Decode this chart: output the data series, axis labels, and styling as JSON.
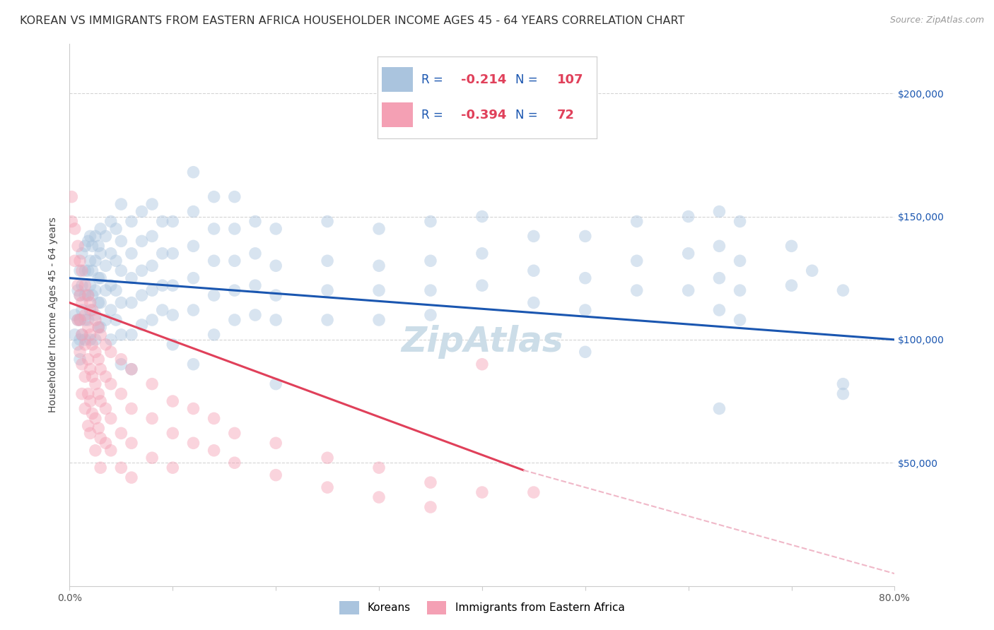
{
  "title": "KOREAN VS IMMIGRANTS FROM EASTERN AFRICA HOUSEHOLDER INCOME AGES 45 - 64 YEARS CORRELATION CHART",
  "source": "Source: ZipAtlas.com",
  "ylabel": "Householder Income Ages 45 - 64 years",
  "xlim": [
    0.0,
    0.8
  ],
  "ylim": [
    0,
    220000
  ],
  "yticks": [
    50000,
    100000,
    150000,
    200000
  ],
  "ytick_labels": [
    "$50,000",
    "$100,000",
    "$150,000",
    "$200,000"
  ],
  "xticks": [
    0.0,
    0.1,
    0.2,
    0.3,
    0.4,
    0.5,
    0.6,
    0.7,
    0.8
  ],
  "xtick_labels": [
    "0.0%",
    "",
    "",
    "",
    "",
    "",
    "",
    "",
    "80.0%"
  ],
  "korean_R": "-0.214",
  "korean_N": "107",
  "eastern_africa_R": "-0.394",
  "eastern_africa_N": "72",
  "korean_color": "#aac4de",
  "eastern_africa_color": "#f4a0b4",
  "korean_line_color": "#1a56b0",
  "eastern_africa_line_color": "#e0405a",
  "eastern_africa_dash_color": "#f0b8c8",
  "legend_label_color": "#1a56b0",
  "legend_value_color": "#e0405a",
  "watermark": "ZipAtlas",
  "watermark_color": "#ccdde8",
  "bg_color": "#ffffff",
  "grid_color": "#d4d4d4",
  "title_fontsize": 11.5,
  "axis_label_fontsize": 10,
  "tick_fontsize": 10,
  "legend_fontsize": 13,
  "watermark_fontsize": 36,
  "dot_size": 160,
  "dot_alpha": 0.45,
  "korean_trend": [
    0.0,
    125000,
    0.8,
    100000
  ],
  "eastern_africa_trend_solid": [
    0.0,
    115000,
    0.44,
    47000
  ],
  "eastern_africa_trend_dash": [
    0.44,
    47000,
    0.8,
    5000
  ],
  "korean_points": [
    [
      0.005,
      110000
    ],
    [
      0.005,
      102000
    ],
    [
      0.008,
      120000
    ],
    [
      0.008,
      108000
    ],
    [
      0.008,
      98000
    ],
    [
      0.01,
      128000
    ],
    [
      0.01,
      118000
    ],
    [
      0.01,
      108000
    ],
    [
      0.01,
      100000
    ],
    [
      0.01,
      92000
    ],
    [
      0.012,
      135000
    ],
    [
      0.012,
      122000
    ],
    [
      0.012,
      112000
    ],
    [
      0.012,
      102000
    ],
    [
      0.015,
      138000
    ],
    [
      0.015,
      128000
    ],
    [
      0.015,
      118000
    ],
    [
      0.015,
      108000
    ],
    [
      0.015,
      100000
    ],
    [
      0.018,
      140000
    ],
    [
      0.018,
      128000
    ],
    [
      0.018,
      118000
    ],
    [
      0.018,
      108000
    ],
    [
      0.02,
      142000
    ],
    [
      0.02,
      132000
    ],
    [
      0.02,
      122000
    ],
    [
      0.02,
      112000
    ],
    [
      0.02,
      100000
    ],
    [
      0.022,
      138000
    ],
    [
      0.022,
      128000
    ],
    [
      0.022,
      118000
    ],
    [
      0.025,
      142000
    ],
    [
      0.025,
      132000
    ],
    [
      0.025,
      120000
    ],
    [
      0.025,
      110000
    ],
    [
      0.025,
      100000
    ],
    [
      0.028,
      138000
    ],
    [
      0.028,
      125000
    ],
    [
      0.028,
      115000
    ],
    [
      0.028,
      105000
    ],
    [
      0.03,
      145000
    ],
    [
      0.03,
      135000
    ],
    [
      0.03,
      125000
    ],
    [
      0.03,
      115000
    ],
    [
      0.03,
      105000
    ],
    [
      0.035,
      142000
    ],
    [
      0.035,
      130000
    ],
    [
      0.035,
      120000
    ],
    [
      0.035,
      108000
    ],
    [
      0.04,
      148000
    ],
    [
      0.04,
      135000
    ],
    [
      0.04,
      122000
    ],
    [
      0.04,
      112000
    ],
    [
      0.04,
      100000
    ],
    [
      0.045,
      145000
    ],
    [
      0.045,
      132000
    ],
    [
      0.045,
      120000
    ],
    [
      0.045,
      108000
    ],
    [
      0.05,
      155000
    ],
    [
      0.05,
      140000
    ],
    [
      0.05,
      128000
    ],
    [
      0.05,
      115000
    ],
    [
      0.05,
      102000
    ],
    [
      0.05,
      90000
    ],
    [
      0.06,
      148000
    ],
    [
      0.06,
      135000
    ],
    [
      0.06,
      125000
    ],
    [
      0.06,
      115000
    ],
    [
      0.06,
      102000
    ],
    [
      0.06,
      88000
    ],
    [
      0.07,
      152000
    ],
    [
      0.07,
      140000
    ],
    [
      0.07,
      128000
    ],
    [
      0.07,
      118000
    ],
    [
      0.07,
      106000
    ],
    [
      0.08,
      155000
    ],
    [
      0.08,
      142000
    ],
    [
      0.08,
      130000
    ],
    [
      0.08,
      120000
    ],
    [
      0.08,
      108000
    ],
    [
      0.09,
      148000
    ],
    [
      0.09,
      135000
    ],
    [
      0.09,
      122000
    ],
    [
      0.09,
      112000
    ],
    [
      0.1,
      148000
    ],
    [
      0.1,
      135000
    ],
    [
      0.1,
      122000
    ],
    [
      0.1,
      110000
    ],
    [
      0.1,
      98000
    ],
    [
      0.12,
      168000
    ],
    [
      0.12,
      152000
    ],
    [
      0.12,
      138000
    ],
    [
      0.12,
      125000
    ],
    [
      0.12,
      112000
    ],
    [
      0.12,
      90000
    ],
    [
      0.14,
      158000
    ],
    [
      0.14,
      145000
    ],
    [
      0.14,
      132000
    ],
    [
      0.14,
      118000
    ],
    [
      0.14,
      102000
    ],
    [
      0.16,
      158000
    ],
    [
      0.16,
      145000
    ],
    [
      0.16,
      132000
    ],
    [
      0.16,
      120000
    ],
    [
      0.16,
      108000
    ],
    [
      0.18,
      148000
    ],
    [
      0.18,
      135000
    ],
    [
      0.18,
      122000
    ],
    [
      0.18,
      110000
    ],
    [
      0.2,
      145000
    ],
    [
      0.2,
      130000
    ],
    [
      0.2,
      118000
    ],
    [
      0.2,
      108000
    ],
    [
      0.2,
      82000
    ],
    [
      0.25,
      148000
    ],
    [
      0.25,
      132000
    ],
    [
      0.25,
      120000
    ],
    [
      0.25,
      108000
    ],
    [
      0.3,
      145000
    ],
    [
      0.3,
      130000
    ],
    [
      0.3,
      120000
    ],
    [
      0.3,
      108000
    ],
    [
      0.35,
      148000
    ],
    [
      0.35,
      132000
    ],
    [
      0.35,
      120000
    ],
    [
      0.35,
      110000
    ],
    [
      0.4,
      150000
    ],
    [
      0.4,
      135000
    ],
    [
      0.4,
      122000
    ],
    [
      0.45,
      142000
    ],
    [
      0.45,
      128000
    ],
    [
      0.45,
      115000
    ],
    [
      0.5,
      185000
    ],
    [
      0.5,
      142000
    ],
    [
      0.5,
      125000
    ],
    [
      0.5,
      112000
    ],
    [
      0.5,
      95000
    ],
    [
      0.55,
      148000
    ],
    [
      0.55,
      132000
    ],
    [
      0.55,
      120000
    ],
    [
      0.6,
      150000
    ],
    [
      0.6,
      135000
    ],
    [
      0.6,
      120000
    ],
    [
      0.63,
      152000
    ],
    [
      0.63,
      138000
    ],
    [
      0.63,
      125000
    ],
    [
      0.63,
      112000
    ],
    [
      0.63,
      72000
    ],
    [
      0.65,
      148000
    ],
    [
      0.65,
      132000
    ],
    [
      0.65,
      120000
    ],
    [
      0.65,
      108000
    ],
    [
      0.7,
      138000
    ],
    [
      0.7,
      122000
    ],
    [
      0.72,
      128000
    ],
    [
      0.75,
      120000
    ],
    [
      0.75,
      82000
    ],
    [
      0.75,
      78000
    ]
  ],
  "eastern_africa_points": [
    [
      0.002,
      158000
    ],
    [
      0.002,
      148000
    ],
    [
      0.005,
      145000
    ],
    [
      0.005,
      132000
    ],
    [
      0.008,
      138000
    ],
    [
      0.008,
      122000
    ],
    [
      0.008,
      108000
    ],
    [
      0.01,
      132000
    ],
    [
      0.01,
      118000
    ],
    [
      0.01,
      108000
    ],
    [
      0.01,
      95000
    ],
    [
      0.012,
      128000
    ],
    [
      0.012,
      115000
    ],
    [
      0.012,
      102000
    ],
    [
      0.012,
      90000
    ],
    [
      0.012,
      78000
    ],
    [
      0.015,
      122000
    ],
    [
      0.015,
      110000
    ],
    [
      0.015,
      98000
    ],
    [
      0.015,
      85000
    ],
    [
      0.015,
      72000
    ],
    [
      0.018,
      118000
    ],
    [
      0.018,
      105000
    ],
    [
      0.018,
      92000
    ],
    [
      0.018,
      78000
    ],
    [
      0.018,
      65000
    ],
    [
      0.02,
      115000
    ],
    [
      0.02,
      102000
    ],
    [
      0.02,
      88000
    ],
    [
      0.02,
      75000
    ],
    [
      0.02,
      62000
    ],
    [
      0.022,
      112000
    ],
    [
      0.022,
      98000
    ],
    [
      0.022,
      85000
    ],
    [
      0.022,
      70000
    ],
    [
      0.025,
      108000
    ],
    [
      0.025,
      95000
    ],
    [
      0.025,
      82000
    ],
    [
      0.025,
      68000
    ],
    [
      0.025,
      55000
    ],
    [
      0.028,
      105000
    ],
    [
      0.028,
      92000
    ],
    [
      0.028,
      78000
    ],
    [
      0.028,
      64000
    ],
    [
      0.03,
      102000
    ],
    [
      0.03,
      88000
    ],
    [
      0.03,
      75000
    ],
    [
      0.03,
      60000
    ],
    [
      0.03,
      48000
    ],
    [
      0.035,
      98000
    ],
    [
      0.035,
      85000
    ],
    [
      0.035,
      72000
    ],
    [
      0.035,
      58000
    ],
    [
      0.04,
      95000
    ],
    [
      0.04,
      82000
    ],
    [
      0.04,
      68000
    ],
    [
      0.04,
      55000
    ],
    [
      0.05,
      92000
    ],
    [
      0.05,
      78000
    ],
    [
      0.05,
      62000
    ],
    [
      0.05,
      48000
    ],
    [
      0.06,
      88000
    ],
    [
      0.06,
      72000
    ],
    [
      0.06,
      58000
    ],
    [
      0.06,
      44000
    ],
    [
      0.08,
      82000
    ],
    [
      0.08,
      68000
    ],
    [
      0.08,
      52000
    ],
    [
      0.1,
      75000
    ],
    [
      0.1,
      62000
    ],
    [
      0.1,
      48000
    ],
    [
      0.12,
      72000
    ],
    [
      0.12,
      58000
    ],
    [
      0.14,
      68000
    ],
    [
      0.14,
      55000
    ],
    [
      0.16,
      62000
    ],
    [
      0.16,
      50000
    ],
    [
      0.2,
      58000
    ],
    [
      0.2,
      45000
    ],
    [
      0.25,
      52000
    ],
    [
      0.25,
      40000
    ],
    [
      0.3,
      48000
    ],
    [
      0.3,
      36000
    ],
    [
      0.35,
      42000
    ],
    [
      0.35,
      32000
    ],
    [
      0.4,
      90000
    ],
    [
      0.4,
      38000
    ],
    [
      0.45,
      38000
    ]
  ]
}
